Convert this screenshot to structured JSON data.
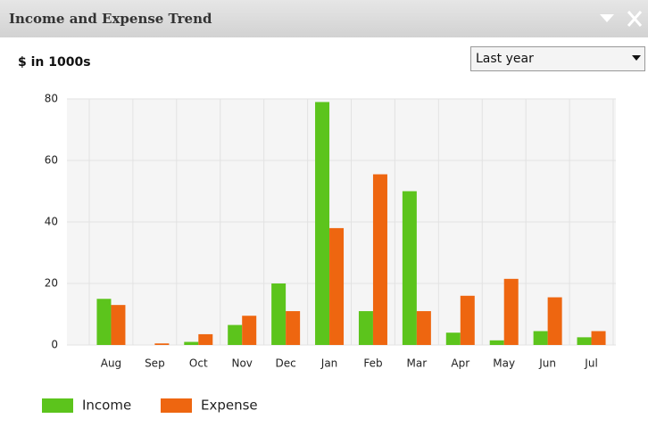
{
  "panel": {
    "title": "Income and Expense Trend",
    "dropdown": "Last year"
  },
  "chart_data": {
    "type": "bar",
    "subtitle": "$ in 1000s",
    "categories": [
      "Aug",
      "Sep",
      "Oct",
      "Nov",
      "Dec",
      "Jan",
      "Feb",
      "Mar",
      "Apr",
      "May",
      "Jun",
      "Jul"
    ],
    "series": [
      {
        "name": "Income",
        "color": "#5cc41c",
        "values": [
          15,
          0,
          1,
          6.5,
          20,
          79,
          11,
          50,
          4,
          1.5,
          4.5,
          2.5
        ]
      },
      {
        "name": "Expense",
        "color": "#ee6610",
        "values": [
          13,
          0.5,
          3.5,
          9.5,
          11,
          38,
          55.5,
          11,
          16,
          21.5,
          15.5,
          4.5
        ]
      }
    ],
    "ylim": [
      0,
      80
    ],
    "yticks": [
      0,
      20,
      40,
      60,
      80
    ],
    "grid": true,
    "legend": "bottom"
  }
}
